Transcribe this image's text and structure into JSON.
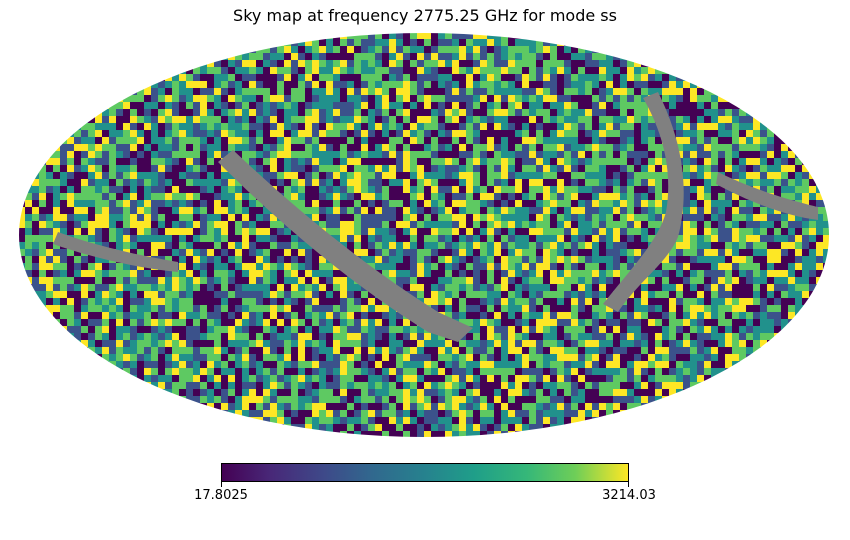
{
  "title": "Sky map at frequency 2775.25 GHz for mode ss",
  "chart_data": {
    "type": "heatmap",
    "projection": "mollweide",
    "title": "Sky map at frequency 2775.25 GHz for mode ss",
    "colormap": "viridis",
    "colorbar": {
      "min": 17.8025,
      "max": 3214.03,
      "min_label": "17.8025",
      "max_label": "3214.03",
      "orientation": "horizontal",
      "placement": "bottom"
    },
    "masked_color": "#808080",
    "colormap_stops": [
      "#440154",
      "#3b528b",
      "#21918c",
      "#5ec962",
      "#fde725"
    ]
  }
}
